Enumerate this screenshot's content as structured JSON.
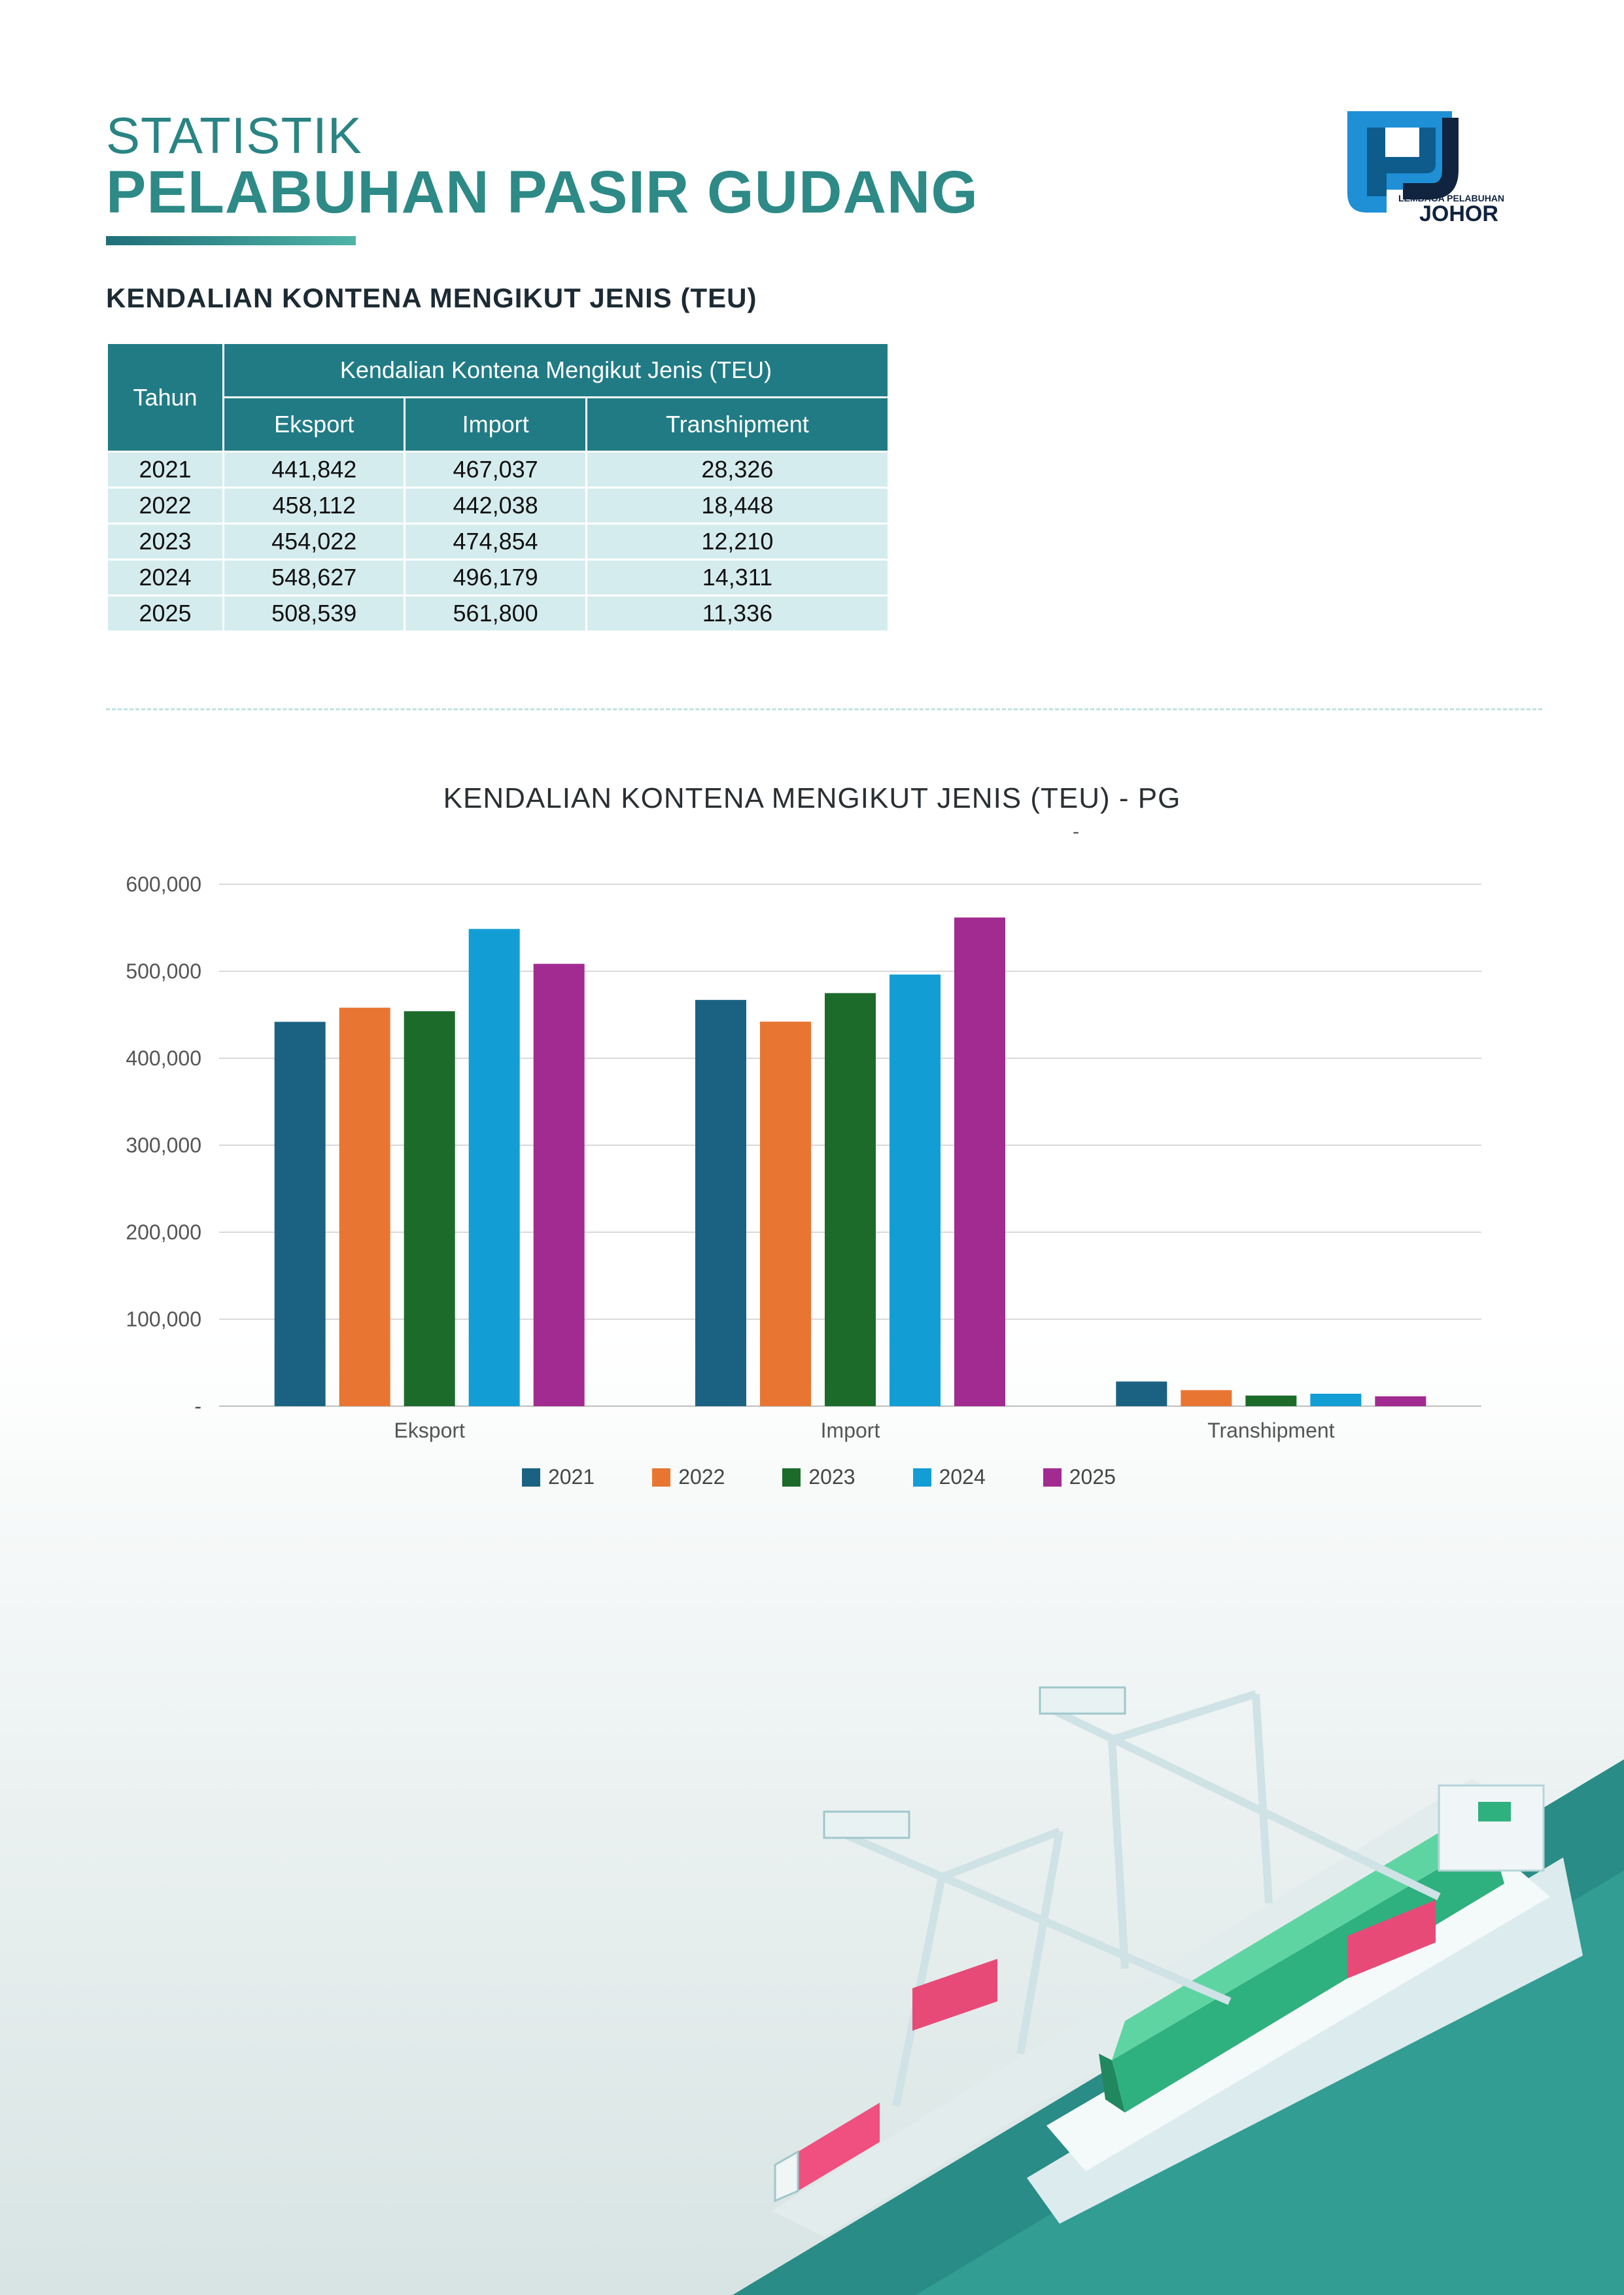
{
  "header": {
    "title_line1": "STATISTIK",
    "title_line2": "PELABUHAN PASIR GUDANG",
    "logo_text_top": "LEMBAGA PELABUHAN",
    "logo_text_bottom": "JOHOR"
  },
  "section_heading": "KENDALIAN KONTENA MENGIKUT JENIS (TEU)",
  "table": {
    "year_header": "Tahun",
    "group_header": "Kendalian Kontena Mengikut Jenis (TEU)",
    "columns": [
      "Eksport",
      "Import",
      "Transhipment"
    ],
    "rows": [
      {
        "year": "2021",
        "eksport": "441,842",
        "import": "467,037",
        "transhipment": "28,326"
      },
      {
        "year": "2022",
        "eksport": "458,112",
        "import": "442,038",
        "transhipment": "18,448"
      },
      {
        "year": "2023",
        "eksport": "454,022",
        "import": "474,854",
        "transhipment": "12,210"
      },
      {
        "year": "2024",
        "eksport": "548,627",
        "import": "496,179",
        "transhipment": "14,311"
      },
      {
        "year": "2025",
        "eksport": "508,539",
        "import": "561,800",
        "transhipment": "11,336"
      }
    ]
  },
  "chart_data": {
    "type": "bar",
    "title": "KENDALIAN KONTENA MENGIKUT JENIS (TEU) - PG",
    "subtitle": "-",
    "categories": [
      "Eksport",
      "Import",
      "Transhipment"
    ],
    "series": [
      {
        "name": "2021",
        "color": "#1b6282",
        "values": [
          441842,
          467037,
          28326
        ]
      },
      {
        "name": "2022",
        "color": "#e87632",
        "values": [
          458112,
          442038,
          18448
        ]
      },
      {
        "name": "2023",
        "color": "#1c6b2a",
        "values": [
          454022,
          474854,
          12210
        ]
      },
      {
        "name": "2024",
        "color": "#129ed5",
        "values": [
          548627,
          496179,
          14311
        ]
      },
      {
        "name": "2025",
        "color": "#a22b91",
        "values": [
          508539,
          561800,
          11336
        ]
      }
    ],
    "ylim": [
      0,
      600000
    ],
    "yticks": [
      0,
      100000,
      200000,
      300000,
      400000,
      500000,
      600000
    ],
    "ytick_labels": [
      "-",
      "100,000",
      "200,000",
      "300,000",
      "400,000",
      "500,000",
      "600,000"
    ],
    "grid": true,
    "legend": "bottom"
  }
}
